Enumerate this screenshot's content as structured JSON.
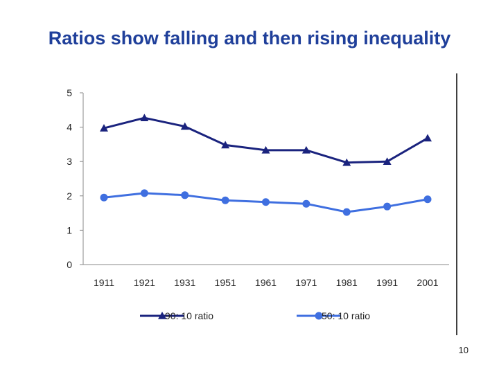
{
  "slide": {
    "title": "Ratios show falling and then rising inequality",
    "page_number": "10"
  },
  "chart_data": {
    "type": "line",
    "title": "",
    "xlabel": "",
    "ylabel": "",
    "categories": [
      "1911",
      "1921",
      "1931",
      "1951",
      "1961",
      "1971",
      "1981",
      "1991",
      "2001"
    ],
    "ylim": [
      0,
      5
    ],
    "yticks": [
      "0",
      "1",
      "2",
      "3",
      "4",
      "5"
    ],
    "grid": false,
    "legend_position": "bottom",
    "series": [
      {
        "name": "90: 10 ratio",
        "marker": "triangle",
        "color": "#1a237e",
        "values": [
          3.97,
          4.27,
          4.02,
          3.48,
          3.33,
          3.33,
          2.97,
          3.0,
          3.68
        ]
      },
      {
        "name": "50: 10 ratio",
        "marker": "circle",
        "color": "#3f6fe0",
        "values": [
          1.95,
          2.08,
          2.02,
          1.87,
          1.82,
          1.77,
          1.53,
          1.69,
          1.9
        ]
      }
    ]
  }
}
